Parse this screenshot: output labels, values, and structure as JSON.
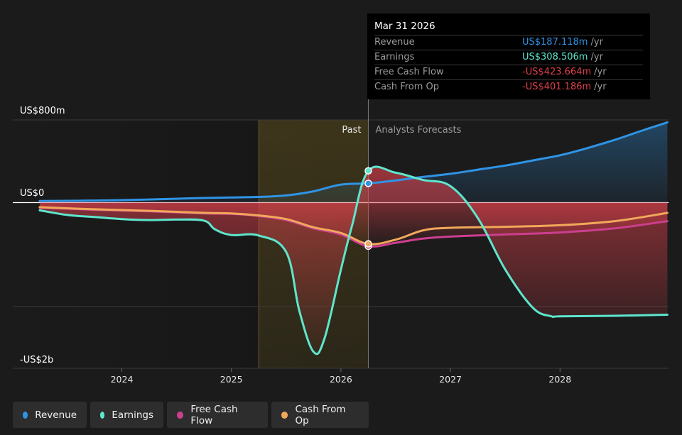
{
  "chart_data": {
    "type": "line",
    "y_axis_labels": [
      "US$800m",
      "US$0",
      "-US$2b"
    ],
    "x_tick_labels": [
      "2024",
      "2025",
      "2026",
      "2027",
      "2028"
    ],
    "x_ticks": [
      2024,
      2025,
      2026,
      2027,
      2028
    ],
    "ylim_musd": [
      -1600,
      800
    ],
    "region_labels": {
      "past": "Past",
      "forecast": "Analysts Forecasts"
    },
    "highlight_range": [
      2025.25,
      2026.25
    ],
    "divider_x": 2026.25,
    "series": [
      {
        "name": "Revenue",
        "color": "#2f94e6",
        "marker_x": 2026.25,
        "marker_y": 187,
        "points": [
          [
            2023.25,
            15
          ],
          [
            2023.75,
            20
          ],
          [
            2024.25,
            30
          ],
          [
            2024.75,
            45
          ],
          [
            2025.0,
            50
          ],
          [
            2025.25,
            55
          ],
          [
            2025.5,
            70
          ],
          [
            2025.75,
            110
          ],
          [
            2026.0,
            175
          ],
          [
            2026.25,
            187
          ],
          [
            2026.5,
            215
          ],
          [
            2026.75,
            250
          ],
          [
            2027.0,
            280
          ],
          [
            2027.25,
            320
          ],
          [
            2027.5,
            360
          ],
          [
            2027.75,
            410
          ],
          [
            2028.0,
            460
          ],
          [
            2028.25,
            530
          ],
          [
            2028.5,
            610
          ],
          [
            2028.75,
            700
          ],
          [
            2028.98,
            780
          ]
        ]
      },
      {
        "name": "Earnings",
        "color": "#5ee6cd",
        "marker_x": 2026.25,
        "marker_y": 308.5,
        "points": [
          [
            2023.25,
            -75
          ],
          [
            2023.5,
            -120
          ],
          [
            2023.75,
            -140
          ],
          [
            2024.0,
            -160
          ],
          [
            2024.25,
            -170
          ],
          [
            2024.5,
            -165
          ],
          [
            2024.75,
            -175
          ],
          [
            2024.85,
            -260
          ],
          [
            2025.0,
            -315
          ],
          [
            2025.25,
            -320
          ],
          [
            2025.5,
            -480
          ],
          [
            2025.62,
            -1050
          ],
          [
            2025.75,
            -1450
          ],
          [
            2025.85,
            -1320
          ],
          [
            2026.0,
            -650
          ],
          [
            2026.1,
            -230
          ],
          [
            2026.25,
            308.5
          ],
          [
            2026.5,
            290
          ],
          [
            2026.75,
            220
          ],
          [
            2027.0,
            160
          ],
          [
            2027.25,
            -150
          ],
          [
            2027.5,
            -650
          ],
          [
            2027.75,
            -1020
          ],
          [
            2027.92,
            -1105
          ],
          [
            2028.0,
            -1105
          ],
          [
            2028.5,
            -1100
          ],
          [
            2028.98,
            -1090
          ]
        ]
      },
      {
        "name": "Free Cash Flow",
        "color": "#cc3f8f",
        "marker_x": 2026.25,
        "marker_y": -423.664,
        "points": [
          [
            2023.25,
            -50
          ],
          [
            2023.75,
            -70
          ],
          [
            2024.25,
            -85
          ],
          [
            2024.75,
            -105
          ],
          [
            2025.0,
            -110
          ],
          [
            2025.25,
            -130
          ],
          [
            2025.5,
            -170
          ],
          [
            2025.75,
            -250
          ],
          [
            2026.0,
            -310
          ],
          [
            2026.25,
            -423.664
          ],
          [
            2026.5,
            -390
          ],
          [
            2026.75,
            -350
          ],
          [
            2027.0,
            -330
          ],
          [
            2027.5,
            -310
          ],
          [
            2028.0,
            -290
          ],
          [
            2028.5,
            -250
          ],
          [
            2028.98,
            -180
          ]
        ]
      },
      {
        "name": "Cash From Op",
        "color": "#f0a85a",
        "marker_x": 2026.25,
        "marker_y": -401.186,
        "points": [
          [
            2023.25,
            -45
          ],
          [
            2023.75,
            -65
          ],
          [
            2024.25,
            -80
          ],
          [
            2024.75,
            -100
          ],
          [
            2025.0,
            -105
          ],
          [
            2025.25,
            -125
          ],
          [
            2025.5,
            -160
          ],
          [
            2025.75,
            -240
          ],
          [
            2026.0,
            -295
          ],
          [
            2026.25,
            -401.186
          ],
          [
            2026.5,
            -360
          ],
          [
            2026.75,
            -270
          ],
          [
            2027.0,
            -245
          ],
          [
            2027.5,
            -235
          ],
          [
            2028.0,
            -220
          ],
          [
            2028.5,
            -180
          ],
          [
            2028.98,
            -100
          ]
        ]
      }
    ]
  },
  "tooltip": {
    "date": "Mar 31 2026",
    "rows": [
      {
        "name": "Revenue",
        "value": "US$187.118m",
        "unit": "/yr",
        "color": "#2f94e6"
      },
      {
        "name": "Earnings",
        "value": "US$308.506m",
        "unit": "/yr",
        "color": "#5ee6cd"
      },
      {
        "name": "Free Cash Flow",
        "value": "-US$423.664m",
        "unit": "/yr",
        "color": "#e0424d"
      },
      {
        "name": "Cash From Op",
        "value": "-US$401.186m",
        "unit": "/yr",
        "color": "#e0424d"
      }
    ]
  },
  "legend": [
    {
      "label": "Revenue",
      "color": "#2f94e6"
    },
    {
      "label": "Earnings",
      "color": "#5ee6cd"
    },
    {
      "label": "Free Cash Flow",
      "color": "#cc3f8f"
    },
    {
      "label": "Cash From Op",
      "color": "#f0a85a"
    }
  ]
}
